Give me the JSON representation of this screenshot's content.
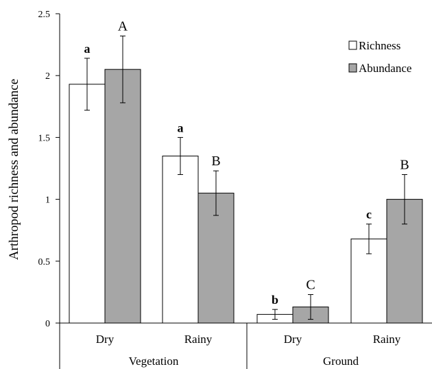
{
  "chart_data": {
    "type": "bar",
    "ylabel": "Arthropod richness and abundance",
    "ylim": [
      0,
      2.5
    ],
    "yticks": [
      "0",
      "0.5",
      "1",
      "1.5",
      "2",
      "2.5"
    ],
    "groups": [
      {
        "label": "Vegetation",
        "categories": [
          "Dry",
          "Rainy"
        ]
      },
      {
        "label": "Ground",
        "categories": [
          "Dry",
          "Rainy"
        ]
      }
    ],
    "categories": [
      "Dry",
      "Rainy",
      "Dry",
      "Rainy"
    ],
    "series": [
      {
        "name": "Richness",
        "color": "#ffffff",
        "values": [
          1.93,
          1.35,
          0.07,
          0.68
        ],
        "errors": [
          0.21,
          0.15,
          0.04,
          0.12
        ],
        "labels": [
          "a",
          "a",
          "b",
          "c"
        ]
      },
      {
        "name": "Abundance",
        "color": "#a6a6a6",
        "values": [
          2.05,
          1.05,
          0.13,
          1.0
        ],
        "errors": [
          0.27,
          0.18,
          0.1,
          0.2
        ],
        "labels": [
          "A",
          "B",
          "C",
          "B"
        ]
      }
    ],
    "legend": "top-right",
    "grid": false
  }
}
